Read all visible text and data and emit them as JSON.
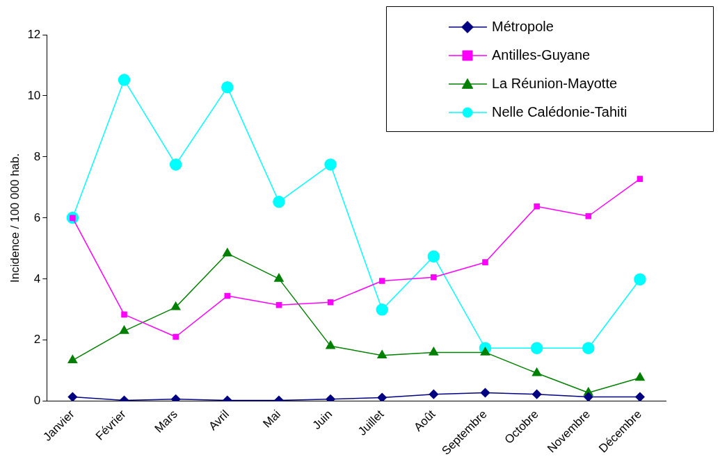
{
  "chart_data": {
    "type": "line",
    "ylabel": "Incidence / 100 000 hab.",
    "categories": [
      "Janvier",
      "Février",
      "Mars",
      "Avril",
      "Mai",
      "Juin",
      "Juillet",
      "Août",
      "Septembre",
      "Octobre",
      "Novembre",
      "Décembre"
    ],
    "series": [
      {
        "name": "Métropole",
        "color": "#000080",
        "marker": "diamond",
        "values": [
          0.14,
          0.03,
          0.07,
          0.03,
          0.03,
          0.07,
          0.12,
          0.23,
          0.28,
          0.23,
          0.14,
          0.14
        ]
      },
      {
        "name": "Antilles-Guyane",
        "color": "#ff00ff",
        "marker": "square",
        "values": [
          6.0,
          2.84,
          2.11,
          3.45,
          3.15,
          3.24,
          3.94,
          4.06,
          4.55,
          6.38,
          6.06,
          7.28
        ]
      },
      {
        "name": "La Réunion-Mayotte",
        "color": "#008000",
        "marker": "triangle",
        "values": [
          1.34,
          2.3,
          3.08,
          4.84,
          4.01,
          1.81,
          1.5,
          1.6,
          1.6,
          0.92,
          0.28,
          0.77
        ]
      },
      {
        "name": "Nelle Calédonie-Tahiti",
        "color": "#00ffff",
        "marker": "circle",
        "values": [
          6.01,
          10.52,
          7.75,
          10.28,
          6.53,
          7.75,
          3.0,
          4.74,
          1.74,
          1.74,
          1.74,
          3.99
        ]
      }
    ],
    "ylim": [
      0,
      12
    ],
    "yticks": [
      0,
      2,
      4,
      6,
      8,
      10,
      12
    ],
    "grid": false,
    "legend": "top right",
    "line_style": "solid"
  }
}
